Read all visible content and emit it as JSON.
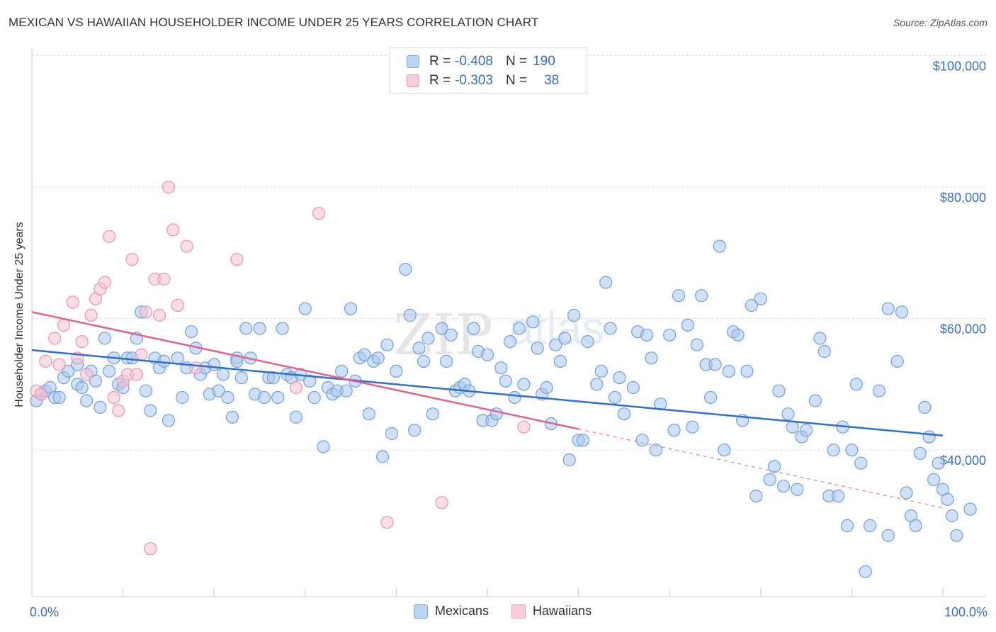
{
  "title": "MEXICAN VS HAWAIIAN HOUSEHOLDER INCOME UNDER 25 YEARS CORRELATION CHART",
  "source": "Source: ZipAtlas.com",
  "watermark": {
    "zip": "ZIP",
    "atlas": "atlas"
  },
  "legend": {
    "rows": [
      {
        "r_label": "R = ",
        "r_value": "-0.408",
        "n_label": "N = ",
        "n_value": "190",
        "color": "#8fb8e8"
      },
      {
        "r_label": "R = ",
        "r_value": "-0.303",
        "n_label": "N = ",
        "n_value": "38",
        "color": "#f4a7bf"
      }
    ]
  },
  "bottom_legend": {
    "mexicans": "Mexicans",
    "hawaiians": "Hawaiians"
  },
  "colors": {
    "mexicans_fill": "#a9c8f0",
    "mexicans_stroke": "#6f9fdc",
    "mexicans_line": "#2f6fc9",
    "hawaiians_fill": "#f7c1d2",
    "hawaiians_stroke": "#ec93b1",
    "hawaiians_line": "#e06391",
    "grid": "#dddddd",
    "tick_label": "#3a6fc0"
  },
  "chart_data": {
    "type": "scatter",
    "title": "MEXICAN VS HAWAIIAN HOUSEHOLDER INCOME UNDER 25 YEARS CORRELATION CHART",
    "xlabel": "",
    "ylabel": "Householder Income Under 25 years",
    "xlim": [
      0,
      100
    ],
    "ylim": [
      19000,
      102000
    ],
    "x_tick_labels": [
      "0.0%",
      "100.0%"
    ],
    "y_ticks": [
      40000,
      60000,
      80000,
      100000
    ],
    "y_tick_labels": [
      "$40,000",
      "$60,000",
      "$80,000",
      "$100,000"
    ],
    "grid": true,
    "legend_position": "top-center",
    "series": [
      {
        "name": "Mexicans",
        "r": -0.408,
        "n": 190,
        "trend": {
          "x": [
            0,
            100
          ],
          "y": [
            55200,
            42200
          ]
        },
        "points": [
          [
            0.5,
            47.5
          ],
          [
            1,
            48.5
          ],
          [
            1.5,
            49
          ],
          [
            2,
            49.5
          ],
          [
            2.5,
            48
          ],
          [
            3,
            48
          ],
          [
            3.5,
            51
          ],
          [
            4,
            52
          ],
          [
            5,
            50
          ],
          [
            5,
            53
          ],
          [
            5.5,
            49.5
          ],
          [
            6,
            47.5
          ],
          [
            6.5,
            52
          ],
          [
            7,
            50.5
          ],
          [
            7.5,
            46.5
          ],
          [
            8,
            57
          ],
          [
            8.5,
            52
          ],
          [
            9,
            54
          ],
          [
            9.5,
            50
          ],
          [
            10,
            49.5
          ],
          [
            10.5,
            54
          ],
          [
            11,
            54
          ],
          [
            11.5,
            57
          ],
          [
            12,
            61
          ],
          [
            12.5,
            49
          ],
          [
            13,
            46
          ],
          [
            13.5,
            54
          ],
          [
            14,
            52.5
          ],
          [
            14.5,
            53.5
          ],
          [
            15,
            44.5
          ],
          [
            16,
            54
          ],
          [
            16.5,
            48
          ],
          [
            17,
            52.5
          ],
          [
            17.5,
            58
          ],
          [
            18,
            55.5
          ],
          [
            18.5,
            51.5
          ],
          [
            19,
            52.5
          ],
          [
            19.5,
            48.5
          ],
          [
            20,
            53
          ],
          [
            20.5,
            49
          ],
          [
            21,
            51.5
          ],
          [
            21.5,
            48
          ],
          [
            22,
            45
          ],
          [
            22.5,
            54
          ],
          [
            22.5,
            53.5
          ],
          [
            23,
            51
          ],
          [
            23.5,
            58.5
          ],
          [
            24,
            54
          ],
          [
            24.5,
            48.5
          ],
          [
            25,
            58.5
          ],
          [
            25.5,
            48
          ],
          [
            26,
            51
          ],
          [
            26.5,
            51
          ],
          [
            27,
            48
          ],
          [
            27.5,
            58.5
          ],
          [
            28,
            51.5
          ],
          [
            28.5,
            51
          ],
          [
            29,
            45
          ],
          [
            29.5,
            51.5
          ],
          [
            30,
            61.5
          ],
          [
            30.5,
            50.5
          ],
          [
            31,
            48
          ],
          [
            32,
            40.5
          ],
          [
            32.5,
            49.5
          ],
          [
            33,
            48.5
          ],
          [
            33.5,
            49
          ],
          [
            34,
            52
          ],
          [
            34.5,
            49
          ],
          [
            35,
            61.5
          ],
          [
            35.5,
            50.5
          ],
          [
            36,
            54
          ],
          [
            36.5,
            54.5
          ],
          [
            37,
            45.5
          ],
          [
            37.5,
            53.5
          ],
          [
            38,
            54
          ],
          [
            38.5,
            39
          ],
          [
            39,
            56
          ],
          [
            39.5,
            42.5
          ],
          [
            40,
            52
          ],
          [
            41,
            67.5
          ],
          [
            41.5,
            60.5
          ],
          [
            42,
            43
          ],
          [
            42.5,
            55.5
          ],
          [
            43,
            53.5
          ],
          [
            43.5,
            57
          ],
          [
            44,
            45.5
          ],
          [
            45,
            58.5
          ],
          [
            45.5,
            53.5
          ],
          [
            46,
            57.5
          ],
          [
            46.5,
            49
          ],
          [
            47,
            49.5
          ],
          [
            47.5,
            50
          ],
          [
            48,
            49
          ],
          [
            48.5,
            58.5
          ],
          [
            49,
            55
          ],
          [
            49.5,
            44.5
          ],
          [
            50,
            54.5
          ],
          [
            50.5,
            44.5
          ],
          [
            51,
            45.5
          ],
          [
            51.5,
            52.5
          ],
          [
            52,
            50.5
          ],
          [
            52.5,
            56.5
          ],
          [
            53,
            48
          ],
          [
            53.5,
            58.5
          ],
          [
            54,
            50
          ],
          [
            55,
            59.5
          ],
          [
            55.5,
            55.5
          ],
          [
            56,
            48.5
          ],
          [
            56.5,
            49.5
          ],
          [
            57,
            44
          ],
          [
            57.5,
            56
          ],
          [
            58,
            53.5
          ],
          [
            58.5,
            57
          ],
          [
            59,
            38.5
          ],
          [
            59.5,
            60.5
          ],
          [
            60,
            41.5
          ],
          [
            60.5,
            41.5
          ],
          [
            61,
            56.5
          ],
          [
            62,
            50
          ],
          [
            62.5,
            52
          ],
          [
            63,
            65.5
          ],
          [
            63.5,
            58.5
          ],
          [
            64,
            48
          ],
          [
            64.5,
            51
          ],
          [
            65,
            45.5
          ],
          [
            66,
            49.5
          ],
          [
            66.5,
            58
          ],
          [
            67,
            41.5
          ],
          [
            67.5,
            57.5
          ],
          [
            68,
            54
          ],
          [
            68.5,
            40
          ],
          [
            69,
            47
          ],
          [
            70,
            57.5
          ],
          [
            70.5,
            43
          ],
          [
            71,
            63.5
          ],
          [
            72,
            59
          ],
          [
            72.5,
            43.5
          ],
          [
            73,
            56
          ],
          [
            73.5,
            63.5
          ],
          [
            74,
            53
          ],
          [
            74.5,
            48
          ],
          [
            75,
            53
          ],
          [
            75.5,
            71
          ],
          [
            76,
            40
          ],
          [
            76.5,
            52
          ],
          [
            77,
            58
          ],
          [
            77.5,
            57.5
          ],
          [
            78,
            44.5
          ],
          [
            78.5,
            52
          ],
          [
            79,
            62
          ],
          [
            79.5,
            33
          ],
          [
            80,
            63
          ],
          [
            81,
            35.5
          ],
          [
            81.5,
            37.5
          ],
          [
            82,
            49
          ],
          [
            82.5,
            34.5
          ],
          [
            83,
            45.5
          ],
          [
            83.5,
            43.5
          ],
          [
            84,
            34
          ],
          [
            84.5,
            42
          ],
          [
            85,
            43
          ],
          [
            86,
            47.5
          ],
          [
            86.5,
            57
          ],
          [
            87,
            55
          ],
          [
            87.5,
            33
          ],
          [
            88,
            40
          ],
          [
            88.5,
            33
          ],
          [
            89,
            43.5
          ],
          [
            89.5,
            28.5
          ],
          [
            90,
            40
          ],
          [
            90.5,
            50
          ],
          [
            91,
            38
          ],
          [
            91.5,
            21.5
          ],
          [
            92,
            28.5
          ],
          [
            93,
            49
          ],
          [
            94,
            61.5
          ],
          [
            94,
            27
          ],
          [
            95,
            53.5
          ],
          [
            95.5,
            61
          ],
          [
            96,
            33.5
          ],
          [
            96.5,
            30
          ],
          [
            97,
            28.5
          ],
          [
            97.5,
            39.5
          ],
          [
            98,
            46.5
          ],
          [
            98.5,
            42
          ],
          [
            99,
            35.5
          ],
          [
            99.5,
            38
          ],
          [
            100,
            34
          ],
          [
            100.5,
            32.5
          ],
          [
            101,
            30
          ],
          [
            101.5,
            27
          ],
          [
            103,
            31
          ]
        ]
      },
      {
        "name": "Hawaiians",
        "r": -0.303,
        "n": 38,
        "trend": {
          "x": [
            0,
            60
          ],
          "y": [
            61000,
            43200
          ]
        },
        "trend_dashed": {
          "x": [
            60,
            100
          ],
          "y": [
            43200,
            31200
          ]
        },
        "points": [
          [
            0.5,
            49
          ],
          [
            1,
            48.5
          ],
          [
            1.5,
            53.5
          ],
          [
            2.5,
            57
          ],
          [
            3,
            53
          ],
          [
            3.5,
            59
          ],
          [
            4.5,
            62.5
          ],
          [
            5,
            54
          ],
          [
            5.5,
            56.5
          ],
          [
            6,
            51.5
          ],
          [
            6.5,
            60.5
          ],
          [
            7,
            63
          ],
          [
            7.5,
            64.5
          ],
          [
            8,
            65.5
          ],
          [
            8.5,
            72.5
          ],
          [
            9,
            48
          ],
          [
            9.5,
            46
          ],
          [
            10,
            50.5
          ],
          [
            10.5,
            51.5
          ],
          [
            11,
            69
          ],
          [
            11.5,
            51.5
          ],
          [
            12,
            54.5
          ],
          [
            12.5,
            61
          ],
          [
            13,
            25
          ],
          [
            13.5,
            66
          ],
          [
            14,
            60.5
          ],
          [
            14.5,
            66
          ],
          [
            15,
            80
          ],
          [
            15.5,
            73.5
          ],
          [
            16,
            62
          ],
          [
            17,
            71
          ],
          [
            18,
            52.5
          ],
          [
            22.5,
            69
          ],
          [
            29,
            49.5
          ],
          [
            31.5,
            76
          ],
          [
            39,
            29
          ],
          [
            45,
            32
          ],
          [
            54,
            43.5
          ]
        ]
      }
    ]
  }
}
